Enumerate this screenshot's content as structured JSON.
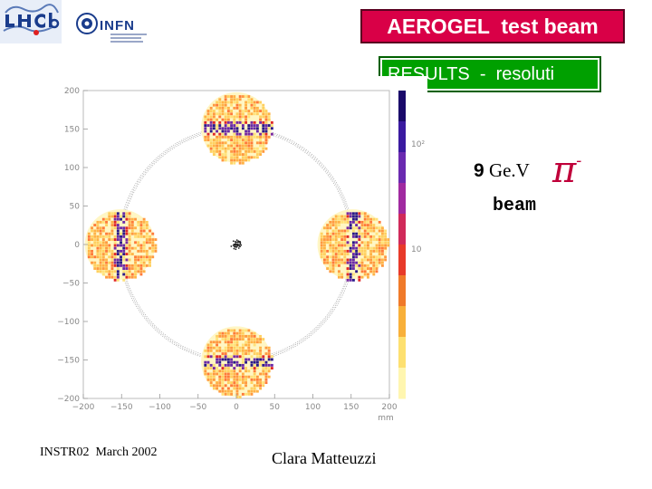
{
  "title": "AEROGEL  test beam",
  "subtitle": "RESULTS  -  resoluti",
  "energy_value": "9",
  "energy_unit": "Ge.V",
  "particle_symbol": "π",
  "particle_charge": "-",
  "beam_label": "beam",
  "footer_left": "INSTR02  March 2002",
  "footer_author": "Clara Matteuzzi",
  "plot": {
    "x_tick_labels": [
      "−200",
      "−150",
      "−100",
      "−50",
      "0",
      "50",
      "100",
      "150",
      "200"
    ],
    "y_tick_labels": [
      "200",
      "150",
      "100",
      "50",
      "0",
      "−50",
      "−100",
      "−150",
      "−200"
    ],
    "x_unit": "mm",
    "colorscale_labels": [
      "10²",
      "10"
    ]
  },
  "colors": {
    "title_bg": "#d90047",
    "subtitle_bg": "#00a000",
    "particle": "#c0003a"
  }
}
